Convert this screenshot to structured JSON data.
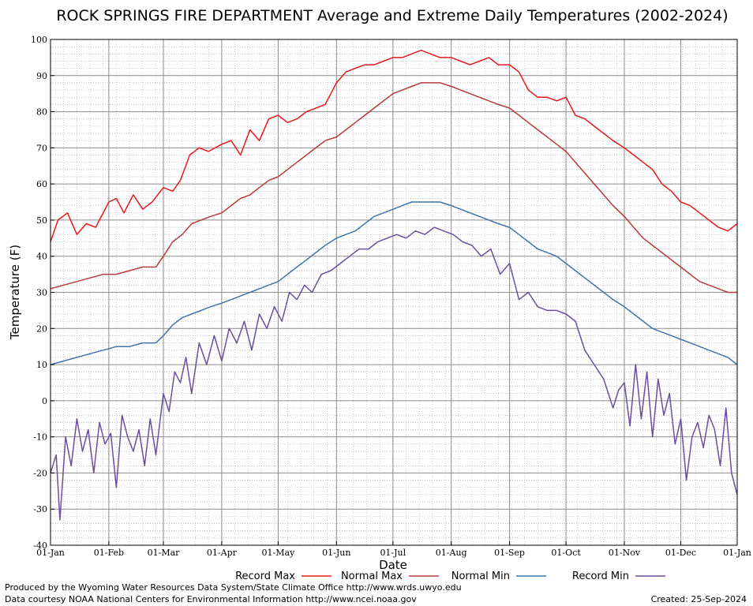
{
  "chart_data": {
    "type": "line",
    "title": "ROCK SPRINGS FIRE DEPARTMENT Average and Extreme Daily Temperatures (2002-2024)",
    "xlabel": "Date",
    "ylabel": "Temperature (F)",
    "ylim": [
      -40,
      100
    ],
    "yticks": [
      -40,
      -30,
      -20,
      -10,
      0,
      10,
      20,
      30,
      40,
      50,
      60,
      70,
      80,
      90,
      100
    ],
    "xlim_days": [
      1,
      366
    ],
    "xticks": [
      {
        "label": "01-Jan",
        "day": 1
      },
      {
        "label": "01-Feb",
        "day": 32
      },
      {
        "label": "01-Mar",
        "day": 61
      },
      {
        "label": "01-Apr",
        "day": 92
      },
      {
        "label": "01-May",
        "day": 122
      },
      {
        "label": "01-Jun",
        "day": 153
      },
      {
        "label": "01-Jul",
        "day": 183
      },
      {
        "label": "01-Aug",
        "day": 214
      },
      {
        "label": "01-Sep",
        "day": 245
      },
      {
        "label": "01-Oct",
        "day": 275
      },
      {
        "label": "01-Nov",
        "day": 306
      },
      {
        "label": "01-Dec",
        "day": 336
      },
      {
        "label": "01-Jan",
        "day": 366
      }
    ],
    "grid": true,
    "legend_position": "bottom",
    "series": [
      {
        "name": "Record Max",
        "color": "#e8191c",
        "x": [
          1,
          5,
          10,
          15,
          20,
          25,
          32,
          36,
          40,
          45,
          50,
          55,
          61,
          66,
          70,
          75,
          80,
          85,
          92,
          97,
          102,
          107,
          112,
          117,
          122,
          127,
          132,
          137,
          142,
          147,
          153,
          158,
          163,
          168,
          173,
          178,
          183,
          188,
          193,
          198,
          203,
          208,
          214,
          219,
          224,
          229,
          234,
          239,
          245,
          250,
          255,
          260,
          265,
          270,
          275,
          280,
          285,
          290,
          295,
          300,
          306,
          311,
          316,
          321,
          326,
          331,
          336,
          341,
          346,
          351,
          356,
          361,
          366
        ],
        "y": [
          44,
          50,
          52,
          46,
          49,
          48,
          55,
          56,
          52,
          57,
          53,
          55,
          59,
          58,
          61,
          68,
          70,
          69,
          71,
          72,
          68,
          75,
          72,
          78,
          79,
          77,
          78,
          80,
          81,
          82,
          88,
          91,
          92,
          93,
          93,
          94,
          95,
          95,
          96,
          97,
          96,
          95,
          95,
          94,
          93,
          94,
          95,
          93,
          93,
          91,
          86,
          84,
          84,
          83,
          84,
          79,
          78,
          76,
          74,
          72,
          70,
          68,
          66,
          64,
          60,
          58,
          55,
          54,
          52,
          50,
          48,
          47,
          49
        ]
      },
      {
        "name": "Normal Max",
        "color": "#b83a3c",
        "x": [
          1,
          8,
          15,
          22,
          29,
          36,
          43,
          50,
          57,
          61,
          66,
          71,
          76,
          81,
          86,
          92,
          97,
          102,
          107,
          112,
          117,
          122,
          127,
          132,
          137,
          142,
          147,
          153,
          158,
          163,
          168,
          173,
          178,
          183,
          188,
          193,
          198,
          203,
          208,
          214,
          219,
          224,
          229,
          234,
          239,
          245,
          250,
          255,
          260,
          265,
          270,
          275,
          280,
          285,
          290,
          295,
          300,
          306,
          311,
          316,
          321,
          326,
          331,
          336,
          341,
          346,
          351,
          356,
          361,
          366
        ],
        "y": [
          31,
          32,
          33,
          34,
          35,
          35,
          36,
          37,
          37,
          40,
          44,
          46,
          49,
          50,
          51,
          52,
          54,
          56,
          57,
          59,
          61,
          62,
          64,
          66,
          68,
          70,
          72,
          73,
          75,
          77,
          79,
          81,
          83,
          85,
          86,
          87,
          88,
          88,
          88,
          87,
          86,
          85,
          84,
          83,
          82,
          81,
          79,
          77,
          75,
          73,
          71,
          69,
          66,
          63,
          60,
          57,
          54,
          51,
          48,
          45,
          43,
          41,
          39,
          37,
          35,
          33,
          32,
          31,
          30,
          30
        ]
      },
      {
        "name": "Normal Min",
        "color": "#3e74ac",
        "x": [
          1,
          8,
          15,
          22,
          29,
          36,
          43,
          50,
          57,
          61,
          66,
          71,
          76,
          81,
          86,
          92,
          97,
          102,
          107,
          112,
          117,
          122,
          127,
          132,
          137,
          142,
          147,
          153,
          158,
          163,
          168,
          173,
          178,
          183,
          188,
          193,
          198,
          203,
          208,
          214,
          219,
          224,
          229,
          234,
          239,
          245,
          250,
          255,
          260,
          265,
          270,
          275,
          280,
          285,
          290,
          295,
          300,
          306,
          311,
          316,
          321,
          326,
          331,
          336,
          341,
          346,
          351,
          356,
          361,
          366
        ],
        "y": [
          10,
          11,
          12,
          13,
          14,
          15,
          15,
          16,
          16,
          18,
          21,
          23,
          24,
          25,
          26,
          27,
          28,
          29,
          30,
          31,
          32,
          33,
          35,
          37,
          39,
          41,
          43,
          45,
          46,
          47,
          49,
          51,
          52,
          53,
          54,
          55,
          55,
          55,
          55,
          54,
          53,
          52,
          51,
          50,
          49,
          48,
          46,
          44,
          42,
          41,
          40,
          38,
          36,
          34,
          32,
          30,
          28,
          26,
          24,
          22,
          20,
          19,
          18,
          17,
          16,
          15,
          14,
          13,
          12,
          10
        ]
      },
      {
        "name": "Record Min",
        "color": "#6b4f9e",
        "x": [
          1,
          4,
          6,
          9,
          12,
          15,
          18,
          21,
          24,
          27,
          30,
          33,
          36,
          39,
          42,
          45,
          48,
          51,
          54,
          57,
          61,
          64,
          67,
          70,
          73,
          76,
          80,
          84,
          88,
          92,
          96,
          100,
          104,
          108,
          112,
          116,
          120,
          124,
          128,
          132,
          136,
          140,
          145,
          150,
          155,
          160,
          165,
          170,
          175,
          180,
          185,
          190,
          195,
          200,
          205,
          210,
          215,
          220,
          225,
          230,
          235,
          240,
          245,
          250,
          255,
          260,
          265,
          270,
          275,
          280,
          285,
          290,
          295,
          300,
          303,
          306,
          309,
          312,
          315,
          318,
          321,
          324,
          327,
          330,
          333,
          336,
          339,
          342,
          345,
          348,
          351,
          354,
          357,
          360,
          363,
          366
        ],
        "y": [
          -20,
          -15,
          -33,
          -10,
          -18,
          -5,
          -14,
          -8,
          -20,
          -6,
          -12,
          -9,
          -24,
          -4,
          -10,
          -14,
          -8,
          -18,
          -5,
          -15,
          2,
          -3,
          8,
          5,
          12,
          2,
          16,
          10,
          18,
          11,
          20,
          16,
          22,
          14,
          24,
          20,
          26,
          22,
          30,
          28,
          32,
          30,
          35,
          36,
          38,
          40,
          42,
          42,
          44,
          45,
          46,
          45,
          47,
          46,
          48,
          47,
          46,
          44,
          43,
          40,
          42,
          35,
          38,
          28,
          30,
          26,
          25,
          25,
          24,
          22,
          14,
          10,
          6,
          -2,
          3,
          5,
          -7,
          10,
          -5,
          8,
          -10,
          6,
          -4,
          2,
          -12,
          -5,
          -22,
          -10,
          -6,
          -13,
          -4,
          -8,
          -18,
          -2,
          -20,
          -26
        ]
      }
    ]
  },
  "footer": {
    "produced_by": "Produced by the Wyoming Water Resources Data System/State Climate Office http://www.wrds.uwyo.edu",
    "data_courtesy": "Data courtesy NOAA National Centers for Environmental Information http://www.ncei.noaa.gov",
    "created": "Created:  25-Sep-2024"
  }
}
